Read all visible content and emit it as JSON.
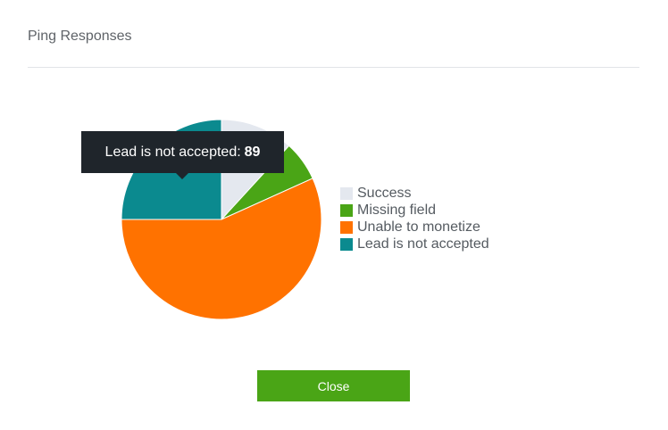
{
  "modal": {
    "title": "Ping Responses",
    "close_label": "Close"
  },
  "tooltip": {
    "label": "Lead is not accepted:",
    "value": "89"
  },
  "colors": {
    "success": "#e4e8ef",
    "missing_field": "#4aa516",
    "unable_to_monetize": "#ff7200",
    "lead_not_accepted": "#0b8a8f",
    "button": "#4aa516"
  },
  "chart_data": {
    "type": "pie",
    "title": "",
    "legend_position": "right",
    "slices": [
      {
        "label": "Success",
        "value": 42,
        "color": "#e4e8ef"
      },
      {
        "label": "Missing field",
        "value": 23,
        "color": "#4aa516"
      },
      {
        "label": "Unable to monetize",
        "value": 202,
        "color": "#ff7200"
      },
      {
        "label": "Lead is not accepted",
        "value": 89,
        "color": "#0b8a8f"
      }
    ]
  }
}
